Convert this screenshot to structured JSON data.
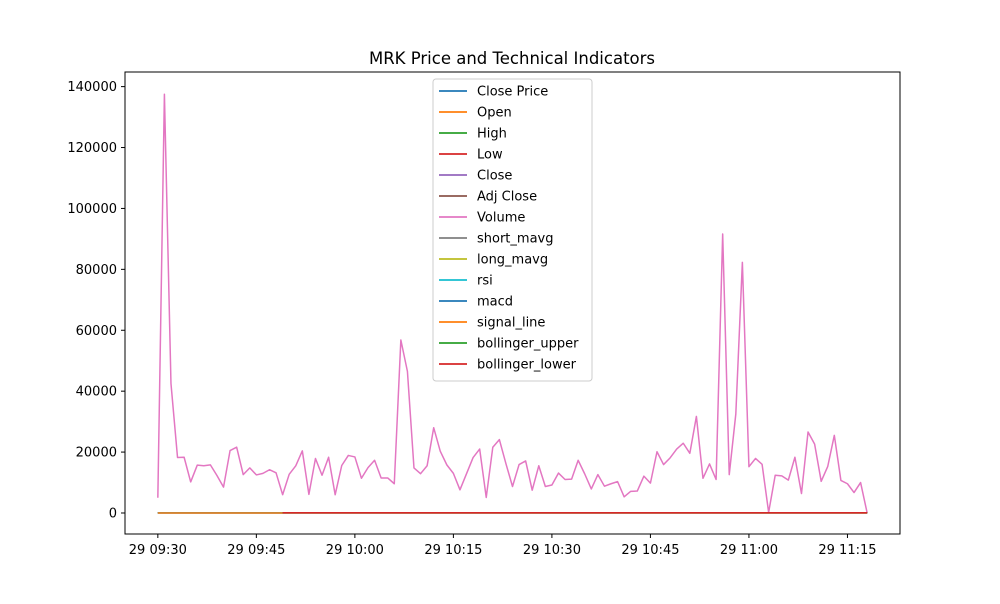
{
  "chart_data": {
    "type": "line",
    "title": "MRK Price and Technical Indicators",
    "xlabel": "",
    "ylabel": "",
    "x_start": "29 09:30",
    "x_end": "29 11:18",
    "x_ticks": [
      {
        "t": "29 09:30",
        "label": "29 09:30"
      },
      {
        "t": "29 09:45",
        "label": "29 09:45"
      },
      {
        "t": "29 10:00",
        "label": "29 10:00"
      },
      {
        "t": "29 10:15",
        "label": "29 10:15"
      },
      {
        "t": "29 10:30",
        "label": "29 10:30"
      },
      {
        "t": "29 10:45",
        "label": "29 10:45"
      },
      {
        "t": "29 11:00",
        "label": "29 11:00"
      },
      {
        "t": "29 11:15",
        "label": "29 11:15"
      }
    ],
    "y_ticks": [
      0,
      20000,
      40000,
      60000,
      80000,
      100000,
      120000,
      140000
    ],
    "y_tick_labels": [
      "0",
      "20000",
      "40000",
      "60000",
      "80000",
      "100000",
      "120000",
      "140000"
    ],
    "ylim": [
      -6900,
      144800
    ],
    "xlim": [
      "29 09:25",
      "29 11:23"
    ],
    "grid": false,
    "legend_position": "upper center",
    "series": [
      {
        "name": "Close Price",
        "color": "#1f77b4",
        "time": [
          "29 09:30",
          "29 11:18"
        ],
        "values": [
          95,
          95
        ]
      },
      {
        "name": "Open",
        "color": "#ff7f0e",
        "time": [
          "29 09:30",
          "29 11:18"
        ],
        "values": [
          95,
          95
        ]
      },
      {
        "name": "High",
        "color": "#2ca02c",
        "time": [
          "29 09:30",
          "29 11:18"
        ],
        "values": [
          95,
          95
        ]
      },
      {
        "name": "Low",
        "color": "#d62728",
        "time": [
          "29 09:30",
          "29 11:18"
        ],
        "values": [
          95,
          95
        ]
      },
      {
        "name": "Close",
        "color": "#9467bd",
        "time": [
          "29 09:30",
          "29 11:18"
        ],
        "values": [
          95,
          95
        ]
      },
      {
        "name": "Adj Close",
        "color": "#8c564b",
        "time": [
          "29 09:30",
          "29 11:18"
        ],
        "values": [
          95,
          95
        ]
      },
      {
        "name": "Volume",
        "color": "#e377c2",
        "time": [
          "29 09:30",
          "29 09:31",
          "29 09:32",
          "29 09:33",
          "29 09:34",
          "29 09:35",
          "29 09:36",
          "29 09:37",
          "29 09:38",
          "29 09:39",
          "29 09:40",
          "29 09:41",
          "29 09:42",
          "29 09:43",
          "29 09:44",
          "29 09:45",
          "29 09:46",
          "29 09:47",
          "29 09:48",
          "29 09:49",
          "29 09:50",
          "29 09:51",
          "29 09:52",
          "29 09:53",
          "29 09:54",
          "29 09:55",
          "29 09:56",
          "29 09:57",
          "29 09:58",
          "29 09:59",
          "29 10:00",
          "29 10:01",
          "29 10:02",
          "29 10:03",
          "29 10:04",
          "29 10:05",
          "29 10:06",
          "29 10:07",
          "29 10:08",
          "29 10:09",
          "29 10:10",
          "29 10:11",
          "29 10:12",
          "29 10:13",
          "29 10:14",
          "29 10:15",
          "29 10:16",
          "29 10:17",
          "29 10:18",
          "29 10:19",
          "29 10:20",
          "29 10:21",
          "29 10:22",
          "29 10:23",
          "29 10:24",
          "29 10:25",
          "29 10:26",
          "29 10:27",
          "29 10:28",
          "29 10:29",
          "29 10:30",
          "29 10:31",
          "29 10:32",
          "29 10:33",
          "29 10:34",
          "29 10:35",
          "29 10:36",
          "29 10:37",
          "29 10:38",
          "29 10:39",
          "29 10:40",
          "29 10:41",
          "29 10:42",
          "29 10:43",
          "29 10:44",
          "29 10:45",
          "29 10:46",
          "29 10:47",
          "29 10:48",
          "29 10:49",
          "29 10:50",
          "29 10:51",
          "29 10:52",
          "29 10:53",
          "29 10:54",
          "29 10:55",
          "29 10:56",
          "29 10:57",
          "29 10:58",
          "29 10:59",
          "29 11:00",
          "29 11:01",
          "29 11:02",
          "29 11:03",
          "29 11:04",
          "29 11:05",
          "29 11:06",
          "29 11:07",
          "29 11:08",
          "29 11:09",
          "29 11:10",
          "29 11:11",
          "29 11:12",
          "29 11:13",
          "29 11:14",
          "29 11:15",
          "29 11:16",
          "29 11:17",
          "29 11:18"
        ],
        "values": [
          5000,
          137500,
          42500,
          18200,
          18300,
          10200,
          15700,
          15500,
          15800,
          12300,
          8500,
          20500,
          21600,
          12600,
          14800,
          12500,
          13000,
          14200,
          13200,
          6000,
          12700,
          15500,
          20400,
          6100,
          17900,
          12400,
          18300,
          6000,
          15600,
          18900,
          18400,
          11400,
          14900,
          17300,
          11500,
          11500,
          9600,
          56800,
          46500,
          14800,
          12900,
          15500,
          28000,
          20300,
          15800,
          13000,
          7600,
          12900,
          18200,
          21000,
          5100,
          21600,
          24100,
          16200,
          8700,
          15900,
          17100,
          7500,
          15500,
          8700,
          9200,
          13100,
          11000,
          11100,
          17300,
          12800,
          7900,
          12600,
          8800,
          9600,
          10300,
          5300,
          7100,
          7200,
          12100,
          9800,
          20100,
          15900,
          18100,
          21000,
          22900,
          19600,
          31700,
          11400,
          16100,
          11000,
          91600,
          12600,
          32500,
          82300,
          15200,
          17900,
          16000,
          200,
          12400,
          12200,
          10800,
          18300,
          6400,
          26600,
          22600,
          10400,
          15300,
          25500,
          10700,
          9600,
          6700,
          10000,
          0
        ]
      },
      {
        "name": "short_mavg",
        "color": "#7f7f7f",
        "time": [
          "29 09:30",
          "29 11:18"
        ],
        "values": [
          95,
          95
        ]
      },
      {
        "name": "long_mavg",
        "color": "#bcbd22",
        "time": [
          "29 09:30",
          "29 11:18"
        ],
        "values": [
          95,
          95
        ]
      },
      {
        "name": "rsi",
        "color": "#17becf",
        "time": [
          "29 09:30",
          "29 11:18"
        ],
        "values": [
          50,
          50
        ]
      },
      {
        "name": "macd",
        "color": "#1f77b4",
        "time": [
          "29 09:30",
          "29 11:18"
        ],
        "values": [
          0,
          0
        ]
      },
      {
        "name": "signal_line",
        "color": "#ff7f0e",
        "time": [
          "29 09:30",
          "29 11:18"
        ],
        "values": [
          0,
          0
        ]
      },
      {
        "name": "bollinger_upper",
        "color": "#2ca02c",
        "time": [
          "29 09:49",
          "29 11:18"
        ],
        "values": [
          97,
          97
        ]
      },
      {
        "name": "bollinger_lower",
        "color": "#d62728",
        "time": [
          "29 09:49",
          "29 11:18"
        ],
        "values": [
          93,
          93
        ]
      }
    ]
  }
}
